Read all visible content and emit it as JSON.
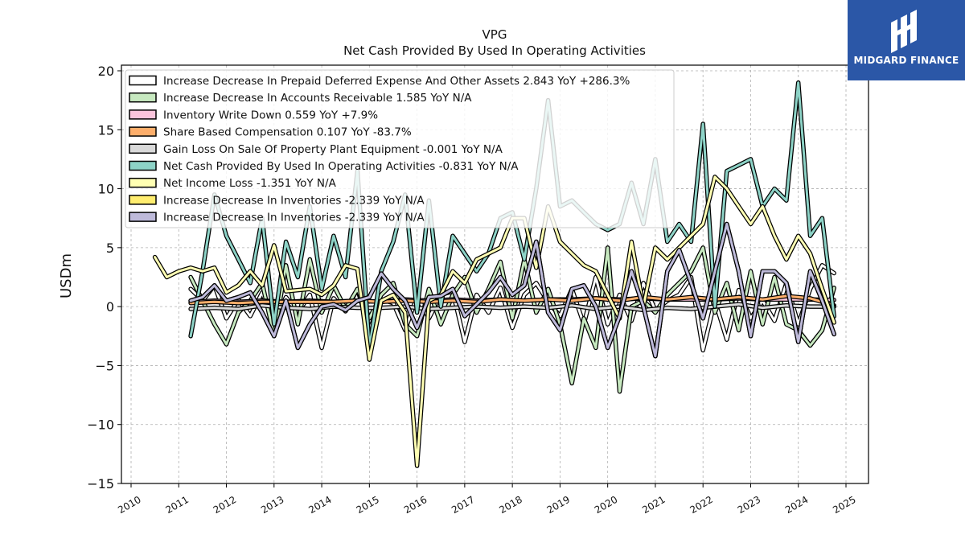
{
  "header": {
    "ticker": "VPG",
    "subtitle": "Net Cash Provided By Used In Operating Activities"
  },
  "brand": {
    "name": "MIDGARD FINANCE",
    "color": "#2b57a7"
  },
  "chart_data": {
    "type": "line",
    "title": "VPG",
    "subtitle": "Net Cash Provided By Used In Operating Activities",
    "ylabel": "USDm",
    "xlabel": "",
    "xlim": [
      2009.8,
      2025.5
    ],
    "ylim": [
      -15,
      20.5
    ],
    "xticks": [
      2010,
      2011,
      2012,
      2013,
      2014,
      2015,
      2016,
      2017,
      2018,
      2019,
      2020,
      2021,
      2022,
      2023,
      2024,
      2025
    ],
    "yticks": [
      -15,
      -10,
      -5,
      0,
      5,
      10,
      15,
      20
    ],
    "ytick_labels": [
      "−15",
      "−10",
      "−5",
      "0",
      "5",
      "10",
      "15",
      "20"
    ],
    "grid": true,
    "legend_position": "top-left",
    "series": [
      {
        "name": "Increase Decrease In Prepaid Deferred Expense And Other Assets",
        "legend_label": "Increase Decrease In Prepaid Deferred Expense And Other Assets  2.843 YoY +286.3%",
        "color": "#ffffff",
        "x": [
          2011.25,
          2011.5,
          2011.75,
          2012.0,
          2012.25,
          2012.5,
          2012.75,
          2013.0,
          2013.25,
          2013.5,
          2013.75,
          2014.0,
          2014.25,
          2014.5,
          2014.75,
          2015.0,
          2015.25,
          2015.5,
          2015.75,
          2016.0,
          2016.25,
          2016.5,
          2016.75,
          2017.0,
          2017.25,
          2017.5,
          2017.75,
          2018.0,
          2018.25,
          2018.5,
          2018.75,
          2019.0,
          2019.25,
          2019.5,
          2019.75,
          2020.0,
          2020.25,
          2020.5,
          2020.75,
          2021.0,
          2021.25,
          2021.5,
          2021.75,
          2022.0,
          2022.25,
          2022.5,
          2022.75,
          2023.0,
          2023.25,
          2023.5,
          2023.75,
          2024.0,
          2024.25,
          2024.5,
          2024.75
        ],
        "y": [
          1.5,
          0.5,
          1.8,
          -1.0,
          0.6,
          -0.8,
          1.2,
          -1.5,
          0.8,
          -0.5,
          1.0,
          -3.5,
          0.7,
          -0.4,
          1.5,
          -2.0,
          0.6,
          0.3,
          -2.0,
          0.9,
          -1.0,
          1.0,
          1.3,
          -3.0,
          1.0,
          -0.5,
          1.6,
          -1.8,
          1.0,
          2.0,
          0.4,
          -0.8,
          1.5,
          -1.5,
          2.5,
          -1.5,
          1.0,
          -1.2,
          2.0,
          -0.3,
          0.5,
          1.0,
          2.5,
          -3.7,
          0.5,
          -2.8,
          1.4,
          -1.0,
          0.5,
          -1.2,
          2.0,
          -1.5,
          1.5,
          3.5,
          2.843
        ]
      },
      {
        "name": "Increase Decrease In Accounts Receivable",
        "legend_label": "Increase Decrease In Accounts Receivable  1.585 YoY N/A",
        "color": "#c7e9c0",
        "x": [
          2011.25,
          2011.5,
          2011.75,
          2012.0,
          2012.25,
          2012.5,
          2012.75,
          2013.0,
          2013.25,
          2013.5,
          2013.75,
          2014.0,
          2014.25,
          2014.5,
          2014.75,
          2015.0,
          2015.25,
          2015.5,
          2015.75,
          2016.0,
          2016.25,
          2016.5,
          2016.75,
          2017.0,
          2017.25,
          2017.5,
          2017.75,
          2018.0,
          2018.25,
          2018.5,
          2018.75,
          2019.0,
          2019.25,
          2019.5,
          2019.75,
          2020.0,
          2020.25,
          2020.5,
          2020.75,
          2021.0,
          2021.25,
          2021.5,
          2021.75,
          2022.0,
          2022.25,
          2022.5,
          2022.75,
          2023.0,
          2023.25,
          2023.5,
          2023.75,
          2024.0,
          2024.25,
          2024.5,
          2024.75
        ],
        "y": [
          2.5,
          0.5,
          -1.5,
          -3.2,
          -0.5,
          0.5,
          2.0,
          -2.5,
          3.5,
          -1.5,
          4.0,
          -0.5,
          1.8,
          -0.2,
          1.5,
          -1.0,
          1.0,
          2.0,
          -1.5,
          -2.5,
          1.5,
          -1.5,
          1.0,
          2.5,
          -0.5,
          1.5,
          3.8,
          -1.0,
          4.0,
          -0.5,
          1.5,
          -1.5,
          -6.5,
          -1.0,
          -3.5,
          5.0,
          -7.2,
          0.0,
          0.5,
          -0.5,
          1.0,
          2.0,
          3.0,
          5.0,
          -0.5,
          2.0,
          -2.0,
          3.0,
          -1.5,
          2.5,
          -1.5,
          -2.0,
          -3.3,
          -2.0,
          1.585
        ]
      },
      {
        "name": "Inventory Write Down",
        "legend_label": "Inventory Write Down  0.559 YoY +7.9%",
        "color": "#fbc4dc",
        "x": [
          2011.25,
          2011.75,
          2012.25,
          2012.75,
          2013.25,
          2013.75,
          2014.25,
          2014.75,
          2015.25,
          2015.75,
          2016.25,
          2016.75,
          2017.25,
          2017.75,
          2018.25,
          2018.75,
          2019.25,
          2019.75,
          2020.25,
          2020.75,
          2021.25,
          2021.75,
          2022.25,
          2022.75,
          2023.25,
          2023.75,
          2024.25,
          2024.75
        ],
        "y": [
          0.4,
          0.5,
          0.4,
          0.5,
          0.4,
          0.5,
          0.4,
          0.5,
          0.4,
          0.6,
          0.5,
          0.6,
          0.5,
          0.6,
          0.5,
          0.6,
          0.6,
          0.7,
          0.6,
          0.7,
          0.6,
          0.6,
          0.6,
          0.7,
          0.6,
          0.6,
          0.6,
          0.559
        ]
      },
      {
        "name": "Share Based Compensation",
        "legend_label": "Share Based Compensation  0.107 YoY -83.7%",
        "color": "#fdae6b",
        "x": [
          2011.25,
          2011.75,
          2012.25,
          2012.75,
          2013.25,
          2013.75,
          2014.25,
          2014.75,
          2015.25,
          2015.75,
          2016.25,
          2016.75,
          2017.25,
          2017.75,
          2018.25,
          2018.75,
          2019.25,
          2019.75,
          2020.25,
          2020.75,
          2021.25,
          2021.75,
          2022.25,
          2022.75,
          2023.25,
          2023.75,
          2024.25,
          2024.75
        ],
        "y": [
          0.3,
          0.4,
          0.3,
          0.4,
          0.4,
          0.4,
          0.4,
          0.5,
          0.4,
          0.5,
          0.4,
          0.5,
          0.4,
          0.6,
          0.5,
          0.6,
          0.5,
          0.7,
          0.5,
          0.8,
          0.6,
          0.8,
          0.6,
          0.8,
          0.6,
          0.9,
          0.7,
          0.107
        ]
      },
      {
        "name": "Gain Loss On Sale Of Property Plant Equipment",
        "legend_label": "Gain Loss On Sale Of Property Plant Equipment  -0.001 YoY N/A",
        "color": "#d9d9d9",
        "x": [
          2011.25,
          2011.75,
          2012.25,
          2012.75,
          2013.25,
          2013.75,
          2014.25,
          2014.75,
          2015.25,
          2015.75,
          2016.25,
          2016.75,
          2017.25,
          2017.75,
          2018.25,
          2018.75,
          2019.25,
          2019.75,
          2020.25,
          2020.75,
          2021.25,
          2021.75,
          2022.25,
          2022.75,
          2023.25,
          2023.75,
          2024.25,
          2024.75
        ],
        "y": [
          -0.2,
          -0.1,
          -0.2,
          0.1,
          -0.1,
          -0.2,
          0.0,
          -0.1,
          -0.1,
          0.0,
          -0.2,
          -0.1,
          0.0,
          -0.1,
          0.0,
          -0.1,
          0.1,
          -0.2,
          0.0,
          -0.3,
          -0.1,
          -0.2,
          0.0,
          0.2,
          -0.1,
          0.1,
          0.0,
          -0.001
        ]
      },
      {
        "name": "Net Cash Provided By Used In Operating Activities",
        "legend_label": "Net Cash Provided By Used In Operating Activities  -0.831 YoY N/A",
        "color": "#8dd3c7",
        "x": [
          2011.25,
          2011.5,
          2011.75,
          2012.0,
          2012.25,
          2012.5,
          2012.75,
          2013.0,
          2013.25,
          2013.5,
          2013.75,
          2014.0,
          2014.25,
          2014.5,
          2014.75,
          2015.0,
          2015.25,
          2015.5,
          2015.75,
          2016.0,
          2016.25,
          2016.5,
          2016.75,
          2017.0,
          2017.25,
          2017.5,
          2017.75,
          2018.0,
          2018.25,
          2018.5,
          2018.75,
          2019.0,
          2019.25,
          2019.5,
          2019.75,
          2020.0,
          2020.25,
          2020.5,
          2020.75,
          2021.0,
          2021.25,
          2021.5,
          2021.75,
          2022.0,
          2022.25,
          2022.5,
          2022.75,
          2023.0,
          2023.25,
          2023.5,
          2023.75,
          2024.0,
          2024.25,
          2024.5,
          2024.75
        ],
        "y": [
          -2.5,
          3.0,
          9.5,
          6.0,
          4.0,
          2.0,
          7.5,
          -1.5,
          5.5,
          2.5,
          8.5,
          1.5,
          6.0,
          2.5,
          11.5,
          -3.5,
          3.0,
          5.5,
          9.5,
          -0.5,
          9.0,
          0.0,
          6.0,
          4.5,
          3.0,
          4.5,
          7.5,
          8.0,
          4.0,
          10.0,
          17.5,
          8.5,
          9.0,
          8.0,
          7.0,
          6.5,
          7.0,
          10.5,
          7.0,
          12.5,
          5.5,
          7.0,
          5.5,
          15.5,
          0.0,
          11.5,
          12.0,
          12.5,
          8.5,
          10.0,
          9.0,
          19.0,
          6.0,
          7.5,
          -0.831
        ]
      },
      {
        "name": "Net Income Loss",
        "legend_label": "Net Income Loss  -1.351 YoY N/A",
        "color": "#ffffb3",
        "x": [
          2010.5,
          2010.75,
          2011.0,
          2011.25,
          2011.5,
          2011.75,
          2012.0,
          2012.25,
          2012.5,
          2012.75,
          2013.0,
          2013.25,
          2013.5,
          2013.75,
          2014.0,
          2014.25,
          2014.5,
          2014.75,
          2015.0,
          2015.25,
          2015.5,
          2015.75,
          2016.0,
          2016.25,
          2016.5,
          2016.75,
          2017.0,
          2017.25,
          2017.5,
          2017.75,
          2018.0,
          2018.25,
          2018.5,
          2018.75,
          2019.0,
          2019.25,
          2019.5,
          2019.75,
          2020.0,
          2020.25,
          2020.5,
          2020.75,
          2021.0,
          2021.25,
          2021.5,
          2021.75,
          2022.0,
          2022.25,
          2022.5,
          2022.75,
          2023.0,
          2023.25,
          2023.5,
          2023.75,
          2024.0,
          2024.25,
          2024.5,
          2024.75
        ],
        "y": [
          4.2,
          2.5,
          3.0,
          3.3,
          3.0,
          3.3,
          1.2,
          1.8,
          3.0,
          1.8,
          5.2,
          1.3,
          1.4,
          1.5,
          1.0,
          1.8,
          3.5,
          3.2,
          -4.5,
          0.5,
          1.0,
          -0.5,
          -13.5,
          0.5,
          1.0,
          3.0,
          2.0,
          4.0,
          4.5,
          5.0,
          7.5,
          7.5,
          3.3,
          8.5,
          5.5,
          4.5,
          3.5,
          3.0,
          1.0,
          -1.0,
          5.5,
          0.0,
          5.0,
          4.0,
          5.0,
          6.0,
          7.0,
          11.0,
          10.0,
          8.5,
          7.0,
          8.5,
          6.0,
          4.0,
          6.0,
          4.5,
          1.5,
          -1.351
        ]
      },
      {
        "name": "Increase Decrease In Inventories",
        "legend_label": "Increase Decrease In Inventories  -2.339 YoY N/A",
        "color": "#ffed6f",
        "x": [
          2011.25,
          2011.5,
          2011.75,
          2012.0,
          2012.25,
          2012.5,
          2012.75,
          2013.0,
          2013.25,
          2013.5,
          2013.75,
          2014.0,
          2014.25,
          2014.5,
          2014.75,
          2015.0,
          2015.25,
          2015.5,
          2015.75,
          2016.0,
          2016.25,
          2016.5,
          2016.75,
          2017.0,
          2017.25,
          2017.5,
          2017.75,
          2018.0,
          2018.25,
          2018.5,
          2018.75,
          2019.0,
          2019.25,
          2019.5,
          2019.75,
          2020.0,
          2020.25,
          2020.5,
          2020.75,
          2021.0,
          2021.25,
          2021.5,
          2021.75,
          2022.0,
          2022.25,
          2022.5,
          2022.75,
          2023.0,
          2023.25,
          2023.5,
          2023.75,
          2024.0,
          2024.25,
          2024.5,
          2024.75
        ],
        "y": [
          0.5,
          0.8,
          1.8,
          0.5,
          0.8,
          1.2,
          -0.5,
          -2.5,
          0.5,
          -3.5,
          -1.5,
          0.0,
          0.2,
          -0.3,
          0.5,
          0.8,
          2.8,
          1.5,
          0.5,
          -1.8,
          0.8,
          0.9,
          1.5,
          -0.8,
          0.2,
          1.2,
          2.5,
          1.0,
          1.8,
          5.5,
          -0.5,
          -2.0,
          1.5,
          1.8,
          0.0,
          -3.5,
          -0.8,
          3.0,
          0.0,
          -4.2,
          3.0,
          4.8,
          2.0,
          -1.0,
          3.0,
          7.0,
          3.0,
          -2.5,
          3.0,
          3.0,
          2.0,
          -3.0,
          3.0,
          0.5,
          -2.339
        ]
      },
      {
        "name": "Increase Decrease In Inventories",
        "legend_label": "Increase Decrease In Inventories  -2.339 YoY N/A",
        "color": "#bebada",
        "x": [
          2011.25,
          2011.5,
          2011.75,
          2012.0,
          2012.25,
          2012.5,
          2012.75,
          2013.0,
          2013.25,
          2013.5,
          2013.75,
          2014.0,
          2014.25,
          2014.5,
          2014.75,
          2015.0,
          2015.25,
          2015.5,
          2015.75,
          2016.0,
          2016.25,
          2016.5,
          2016.75,
          2017.0,
          2017.25,
          2017.5,
          2017.75,
          2018.0,
          2018.25,
          2018.5,
          2018.75,
          2019.0,
          2019.25,
          2019.5,
          2019.75,
          2020.0,
          2020.25,
          2020.5,
          2020.75,
          2021.0,
          2021.25,
          2021.5,
          2021.75,
          2022.0,
          2022.25,
          2022.5,
          2022.75,
          2023.0,
          2023.25,
          2023.5,
          2023.75,
          2024.0,
          2024.25,
          2024.5,
          2024.75
        ],
        "y": [
          0.5,
          0.8,
          1.8,
          0.5,
          0.8,
          1.2,
          -0.5,
          -2.5,
          0.5,
          -3.5,
          -1.5,
          0.0,
          0.2,
          -0.3,
          0.5,
          0.8,
          2.8,
          1.5,
          0.5,
          -1.8,
          0.8,
          0.9,
          1.5,
          -0.8,
          0.2,
          1.2,
          2.5,
          1.0,
          1.8,
          5.5,
          -0.5,
          -2.0,
          1.5,
          1.8,
          0.0,
          -3.5,
          -0.8,
          3.0,
          0.0,
          -4.2,
          3.0,
          4.8,
          2.0,
          -1.0,
          3.0,
          7.0,
          3.0,
          -2.5,
          3.0,
          3.0,
          2.0,
          -3.0,
          3.0,
          0.5,
          -2.339
        ]
      }
    ]
  }
}
